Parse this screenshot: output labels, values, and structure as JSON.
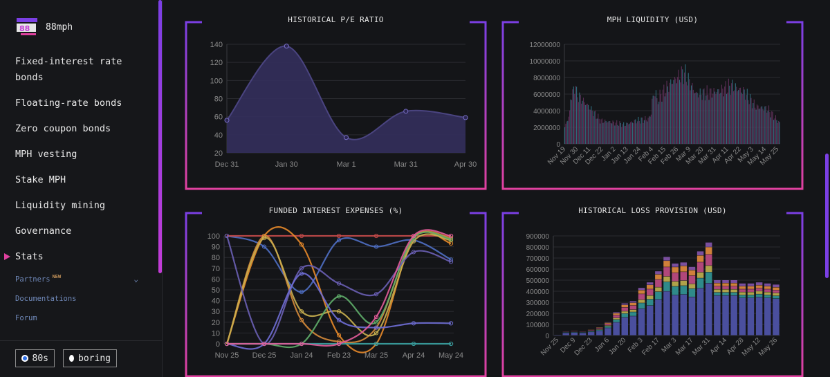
{
  "app": {
    "name": "88mph"
  },
  "nav": {
    "items": [
      {
        "label": "Fixed-interest rate bonds"
      },
      {
        "label": "Floating-rate bonds"
      },
      {
        "label": "Zero coupon bonds"
      },
      {
        "label": "MPH vesting"
      },
      {
        "label": "Stake MPH"
      },
      {
        "label": "Liquidity mining"
      },
      {
        "label": "Governance"
      },
      {
        "label": "Stats",
        "active": true
      }
    ],
    "partners": {
      "label": "Partners",
      "badge": "NEW",
      "icon": "chevron-down-icon"
    },
    "links": [
      {
        "label": "Documentations"
      },
      {
        "label": "Forum"
      }
    ]
  },
  "theme": {
    "options": [
      "80s",
      "boring"
    ],
    "selected": "80s"
  },
  "colors": {
    "accent_top": "#7b3fe4",
    "accent_bottom": "#e0419f",
    "background": "#141518"
  },
  "panels": [
    {
      "title": "HISTORICAL P/E RATIO"
    },
    {
      "title": "MPH LIQUIDITY (USD)"
    },
    {
      "title": "FUNDED INTEREST EXPENSES (%)"
    },
    {
      "title": "HISTORICAL LOSS PROVISION (USD)"
    }
  ],
  "chart_data": [
    {
      "type": "area",
      "title": "HISTORICAL P/E RATIO",
      "categories": [
        "Dec 31",
        "Jan 30",
        "Mar 1",
        "Mar 31",
        "Apr 30"
      ],
      "values": [
        56,
        138,
        37,
        66,
        59
      ],
      "ylim": [
        20,
        140
      ],
      "yticks": [
        20,
        40,
        60,
        80,
        100,
        120,
        140
      ],
      "color": "#4a4480"
    },
    {
      "type": "bar",
      "title": "MPH LIQUIDITY (USD)",
      "xticks": [
        "Nov 19",
        "Nov 30",
        "Dec 11",
        "Dec 22",
        "Jan 2",
        "Jan 13",
        "Jan 24",
        "Feb 4",
        "Feb 15",
        "Feb 26",
        "Mar 9",
        "Mar 20",
        "Mar 31",
        "Apr 11",
        "Apr 22",
        "May 3",
        "May 14",
        "May 25"
      ],
      "values": [
        2000000,
        6000000,
        4500000,
        2800000,
        2600000,
        2300000,
        2800000,
        3000000,
        5800000,
        7500000,
        8600000,
        6000000,
        6100000,
        6400000,
        7000000,
        6300000,
        4500000,
        4200000,
        2500000
      ],
      "ylim": [
        0,
        12000000
      ],
      "yticks": [
        0,
        2000000,
        4000000,
        6000000,
        8000000,
        10000000,
        12000000
      ],
      "colors": [
        "#5a2e55",
        "#2f6a7a"
      ]
    },
    {
      "type": "line",
      "title": "FUNDED INTEREST EXPENSES (%)",
      "categories": [
        "Nov 25",
        "Dec 25",
        "Jan 24",
        "Feb 23",
        "Mar 25",
        "Apr 24",
        "May 24"
      ],
      "ylim": [
        0,
        100
      ],
      "yticks": [
        0,
        10,
        20,
        30,
        40,
        50,
        60,
        70,
        80,
        90,
        100
      ],
      "series": [
        {
          "color": "#4f6fc4",
          "values": [
            100,
            90,
            48,
            96,
            90,
            96,
            78
          ]
        },
        {
          "color": "#c84a4a",
          "values": [
            100,
            100,
            100,
            100,
            100,
            100,
            100
          ]
        },
        {
          "color": "#e88a2a",
          "values": [
            0,
            100,
            92,
            8,
            0,
            98,
            93
          ]
        },
        {
          "color": "#d58a3a",
          "values": [
            0,
            100,
            22,
            2,
            15,
            98,
            98
          ]
        },
        {
          "color": "#c9b050",
          "values": [
            0,
            98,
            30,
            30,
            10,
            95,
            96
          ]
        },
        {
          "color": "#5fae6a",
          "values": [
            0,
            0,
            0,
            44,
            20,
            98,
            97
          ]
        },
        {
          "color": "#6a5fb5",
          "values": [
            100,
            0,
            70,
            56,
            46,
            85,
            76
          ]
        },
        {
          "color": "#6f6ed6",
          "values": [
            0,
            0,
            65,
            22,
            15,
            19,
            19
          ]
        },
        {
          "color": "#3aa3a3",
          "values": [
            0,
            0,
            0,
            0,
            0,
            0,
            0
          ]
        },
        {
          "color": "#e35c9a",
          "values": [
            0,
            0,
            0,
            0,
            25,
            100,
            100
          ]
        }
      ]
    },
    {
      "type": "bar",
      "title": "HISTORICAL LOSS PROVISION (USD)",
      "stacked": true,
      "xticks": [
        "Nov 25",
        "Dec 9",
        "Dec 23",
        "Jan 6",
        "Jan 20",
        "Feb 3",
        "Feb 17",
        "Mar 3",
        "Mar 17",
        "Mar 31",
        "Apr 14",
        "Apr 28",
        "May 12",
        "May 26"
      ],
      "values": [
        10000,
        40000,
        45000,
        40000,
        55000,
        75000,
        120000,
        210000,
        290000,
        310000,
        430000,
        480000,
        580000,
        710000,
        650000,
        660000,
        620000,
        760000,
        840000,
        500000,
        500000,
        500000,
        470000,
        470000,
        480000,
        470000,
        460000
      ],
      "ylim": [
        0,
        900000
      ],
      "yticks": [
        0,
        100000,
        200000,
        300000,
        400000,
        500000,
        600000,
        700000,
        800000,
        900000
      ],
      "colors": [
        "#4a4f9e",
        "#2f8a8a",
        "#b0a24a",
        "#b0477a",
        "#d0803a",
        "#7a4f9e"
      ]
    }
  ]
}
